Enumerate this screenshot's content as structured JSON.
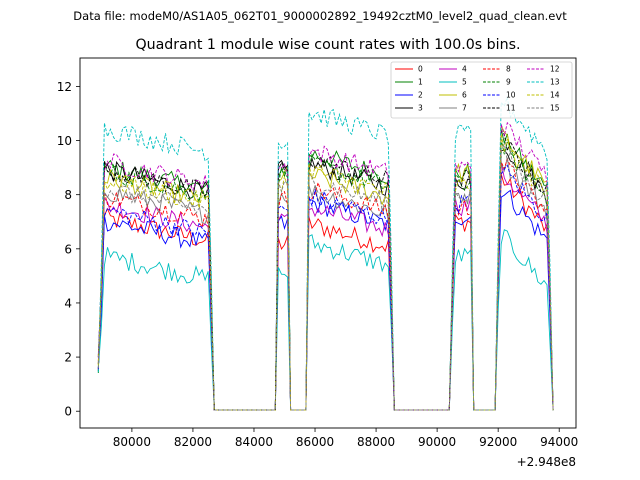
{
  "chart_data": {
    "type": "line",
    "suptitle": "Data file: modeM0/AS1A05_062T01_9000002892_19492cztM0_level2_quad_clean.evt",
    "title": "Quadrant 1 module wise count rates with 100.0s bins.",
    "xlabel": "",
    "ylabel": "",
    "x_offset_label": "+2.948e8",
    "x_offset": 294800000,
    "xlim": [
      78300,
      94550
    ],
    "ylim": [
      -0.62,
      13.05
    ],
    "xticks": [
      80000,
      82000,
      84000,
      86000,
      88000,
      90000,
      92000,
      94000
    ],
    "xtick_labels": [
      "80000",
      "82000",
      "84000",
      "86000",
      "88000",
      "90000",
      "92000",
      "94000"
    ],
    "yticks": [
      0,
      2,
      4,
      6,
      8,
      10,
      12
    ],
    "ytick_labels": [
      "0",
      "2",
      "4",
      "6",
      "8",
      "10",
      "12"
    ],
    "legend_position": "top-right",
    "bin_seconds": 100.0,
    "segments": [
      {
        "start": 79000,
        "end": 82600
      },
      {
        "start": 84750,
        "end": 85150
      },
      {
        "start": 85750,
        "end": 88500
      },
      {
        "start": 90500,
        "end": 91150
      },
      {
        "start": 92000,
        "end": 93700
      }
    ],
    "series": [
      {
        "name": "0",
        "color": "#ff0000",
        "dash": "solid",
        "levels": [
          6.8,
          6.2,
          6.6,
          7.0,
          8.0
        ]
      },
      {
        "name": "1",
        "color": "#008000",
        "dash": "solid",
        "levels": [
          8.7,
          8.9,
          9.2,
          8.8,
          9.5
        ]
      },
      {
        "name": "2",
        "color": "#0000ff",
        "dash": "solid",
        "levels": [
          6.7,
          6.9,
          7.4,
          7.2,
          7.6
        ]
      },
      {
        "name": "3",
        "color": "#000000",
        "dash": "solid",
        "levels": [
          8.6,
          8.9,
          8.8,
          8.5,
          9.3
        ]
      },
      {
        "name": "4",
        "color": "#bf00bf",
        "dash": "solid",
        "levels": [
          7.3,
          7.0,
          7.2,
          7.6,
          8.2
        ]
      },
      {
        "name": "5",
        "color": "#00bfbf",
        "dash": "solid",
        "levels": [
          5.4,
          5.1,
          5.9,
          5.7,
          5.9
        ]
      },
      {
        "name": "6",
        "color": "#bfbf00",
        "dash": "solid",
        "levels": [
          8.3,
          8.7,
          8.4,
          8.8,
          9.6
        ]
      },
      {
        "name": "7",
        "color": "#808080",
        "dash": "solid",
        "levels": [
          7.8,
          8.0,
          7.8,
          8.0,
          8.7
        ]
      },
      {
        "name": "8",
        "color": "#ff0000",
        "dash": "dashed",
        "levels": [
          7.6,
          7.8,
          7.9,
          7.5,
          8.6
        ]
      },
      {
        "name": "9",
        "color": "#008000",
        "dash": "dashed",
        "levels": [
          8.5,
          8.7,
          8.8,
          8.4,
          9.2
        ]
      },
      {
        "name": "10",
        "color": "#0000ff",
        "dash": "dashed",
        "levels": [
          7.1,
          7.4,
          7.6,
          7.7,
          8.4
        ]
      },
      {
        "name": "11",
        "color": "#000000",
        "dash": "dashed",
        "levels": [
          8.6,
          8.9,
          9.0,
          8.6,
          9.4
        ]
      },
      {
        "name": "12",
        "color": "#bf00bf",
        "dash": "dashed",
        "levels": [
          8.9,
          9.0,
          9.3,
          9.0,
          10.0
        ]
      },
      {
        "name": "13",
        "color": "#00bfbf",
        "dash": "dashed",
        "levels": [
          10.1,
          10.0,
          10.7,
          10.2,
          10.9
        ]
      },
      {
        "name": "14",
        "color": "#bfbf00",
        "dash": "dashed",
        "levels": [
          8.2,
          8.5,
          8.6,
          8.3,
          9.3
        ]
      },
      {
        "name": "15",
        "color": "#808080",
        "dash": "dashed",
        "levels": [
          7.9,
          8.2,
          8.2,
          8.0,
          9.0
        ]
      }
    ]
  }
}
